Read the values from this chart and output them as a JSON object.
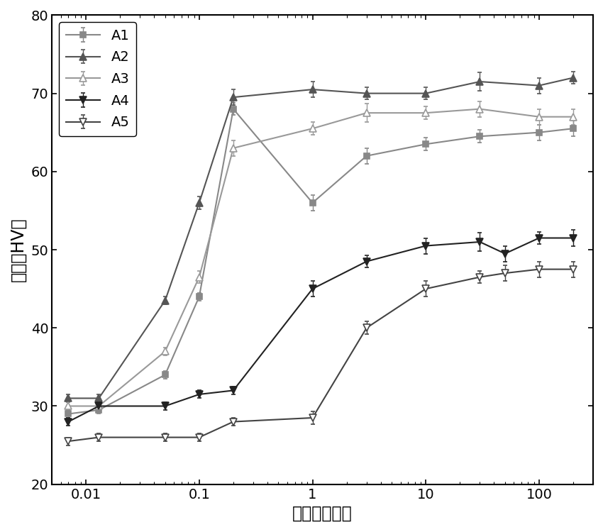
{
  "series": [
    {
      "label": "A1",
      "color": "#888888",
      "marker": "s",
      "marker_fill": "filled",
      "linewidth": 1.5,
      "markersize": 6,
      "x": [
        0.007,
        0.013,
        0.05,
        0.1,
        0.2,
        1.0,
        3.0,
        10.0,
        30.0,
        100.0,
        200.0
      ],
      "y": [
        29.0,
        29.5,
        34.0,
        44.0,
        68.0,
        56.0,
        62.0,
        63.5,
        64.5,
        65.0,
        65.5
      ],
      "yerr": [
        0.5,
        0.5,
        0.5,
        0.5,
        0.8,
        1.0,
        1.0,
        0.8,
        0.8,
        1.0,
        1.0
      ]
    },
    {
      "label": "A2",
      "color": "#555555",
      "marker": "^",
      "marker_fill": "filled",
      "linewidth": 1.5,
      "markersize": 7,
      "x": [
        0.007,
        0.013,
        0.05,
        0.1,
        0.2,
        1.0,
        3.0,
        10.0,
        30.0,
        100.0,
        200.0
      ],
      "y": [
        31.0,
        31.0,
        43.5,
        56.0,
        69.5,
        70.5,
        70.0,
        70.0,
        71.5,
        71.0,
        72.0
      ],
      "yerr": [
        0.5,
        0.5,
        0.5,
        0.8,
        1.0,
        1.0,
        0.8,
        0.8,
        1.2,
        1.0,
        0.8
      ]
    },
    {
      "label": "A3",
      "color": "#999999",
      "marker": "^",
      "marker_fill": "open",
      "linewidth": 1.5,
      "markersize": 7,
      "x": [
        0.007,
        0.013,
        0.05,
        0.1,
        0.2,
        1.0,
        3.0,
        10.0,
        30.0,
        100.0,
        200.0
      ],
      "y": [
        30.0,
        30.0,
        37.0,
        46.5,
        63.0,
        65.5,
        67.5,
        67.5,
        68.0,
        67.0,
        67.0
      ],
      "yerr": [
        0.5,
        0.5,
        0.5,
        0.8,
        1.0,
        0.8,
        1.2,
        0.8,
        1.0,
        1.0,
        1.0
      ]
    },
    {
      "label": "A4",
      "color": "#222222",
      "marker": "v",
      "marker_fill": "filled",
      "linewidth": 1.5,
      "markersize": 7,
      "x": [
        0.007,
        0.013,
        0.05,
        0.1,
        0.2,
        1.0,
        3.0,
        10.0,
        30.0,
        50.0,
        100.0,
        200.0
      ],
      "y": [
        28.0,
        30.0,
        30.0,
        31.5,
        32.0,
        45.0,
        48.5,
        50.5,
        51.0,
        49.5,
        51.5,
        51.5
      ],
      "yerr": [
        0.5,
        0.5,
        0.5,
        0.5,
        0.5,
        1.0,
        0.8,
        1.0,
        1.2,
        1.0,
        0.8,
        1.0
      ]
    },
    {
      "label": "A5",
      "color": "#444444",
      "marker": "v",
      "marker_fill": "open",
      "linewidth": 1.5,
      "markersize": 7,
      "x": [
        0.007,
        0.013,
        0.05,
        0.1,
        0.2,
        1.0,
        3.0,
        10.0,
        30.0,
        50.0,
        100.0,
        200.0
      ],
      "y": [
        25.5,
        26.0,
        26.0,
        26.0,
        28.0,
        28.5,
        40.0,
        45.0,
        46.5,
        47.0,
        47.5,
        47.5
      ],
      "yerr": [
        0.5,
        0.5,
        0.5,
        0.5,
        0.5,
        0.8,
        0.8,
        1.0,
        0.8,
        1.0,
        1.0,
        1.0
      ]
    }
  ],
  "xlabel": "时间（小时）",
  "ylabel": "硬度（HV）",
  "xlim": [
    0.005,
    300.0
  ],
  "ylim": [
    20,
    80
  ],
  "yticks": [
    20,
    30,
    40,
    50,
    60,
    70,
    80
  ],
  "xtick_labels": [
    "0.01",
    "0.1",
    "1",
    "10",
    "100"
  ],
  "xtick_positions": [
    0.01,
    0.1,
    1.0,
    10.0,
    100.0
  ],
  "background_color": "#ffffff",
  "legend_loc": "upper left",
  "legend_fontsize": 14,
  "label_fontsize": 17,
  "tick_fontsize": 14,
  "figwidth": 8.5,
  "figheight": 7.5,
  "dpi": 100
}
